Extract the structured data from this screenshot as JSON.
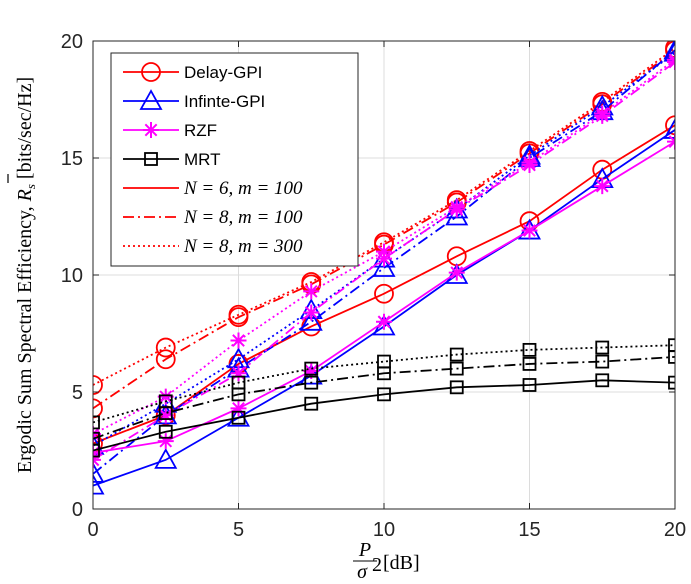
{
  "chart_data": {
    "type": "line",
    "title": "",
    "xlabel": "P/σ² [dB]",
    "xlabel_parts": {
      "num": "P",
      "den": "σ",
      "exp": "2",
      "unit": "[dB]"
    },
    "ylabel": "Ergodic Sum Spectral Efficiency, R̄s [bits/sec/Hz]",
    "ylabel_parts": {
      "prefix": "Ergodic Sum Spectral Efficiency,",
      "sym": "R",
      "sub": "s",
      "unit": "[bits/sec/Hz]"
    },
    "xlim": [
      0,
      20
    ],
    "ylim": [
      0,
      20
    ],
    "xticks": [
      "0",
      "5",
      "10",
      "15",
      "20"
    ],
    "yticks": [
      "0",
      "5",
      "10",
      "15",
      "20"
    ],
    "grid": true,
    "legend_position": "top-left",
    "legend": [
      {
        "label": "Delay-GPI",
        "kind": "marker",
        "marker": "circle",
        "color": "#ff0000"
      },
      {
        "label": "Infinte-GPI",
        "kind": "marker",
        "marker": "triangle",
        "color": "#0000ff"
      },
      {
        "label": "RZF",
        "kind": "marker",
        "marker": "star",
        "color": "#ff00ff"
      },
      {
        "label": "MRT",
        "kind": "marker",
        "marker": "square",
        "color": "#000000"
      },
      {
        "label": "N = 6, m = 100",
        "kind": "line",
        "dash": "solid",
        "color": "#ff0000"
      },
      {
        "label": "N = 8, m = 100",
        "kind": "line",
        "dash": "dashdot",
        "color": "#ff0000"
      },
      {
        "label": "N = 8, m = 300",
        "kind": "line",
        "dash": "dotted",
        "color": "#ff0000"
      }
    ],
    "x": [
      0,
      2.5,
      5,
      7.5,
      10,
      12.5,
      15,
      17.5,
      20
    ],
    "series": [
      {
        "method": "Delay-GPI",
        "config": "N=6, m=100",
        "color": "#ff0000",
        "marker": "circle",
        "dash": "solid",
        "values": [
          2.8,
          4.0,
          6.2,
          7.8,
          9.2,
          10.8,
          12.3,
          14.5,
          16.4
        ]
      },
      {
        "method": "Delay-GPI",
        "config": "N=8, m=100",
        "color": "#ff0000",
        "marker": "circle",
        "dash": "dashdot",
        "values": [
          4.3,
          6.4,
          8.2,
          9.6,
          11.3,
          13.1,
          15.2,
          17.3,
          19.6
        ]
      },
      {
        "method": "Delay-GPI",
        "config": "N=8, m=300",
        "color": "#ff0000",
        "marker": "circle",
        "dash": "dotted",
        "values": [
          5.3,
          6.9,
          8.3,
          9.7,
          11.4,
          13.2,
          15.3,
          17.4,
          19.7
        ]
      },
      {
        "method": "Infinte-GPI",
        "config": "N=6, m=100",
        "color": "#0000ff",
        "marker": "triangle",
        "dash": "solid",
        "values": [
          1.0,
          2.1,
          3.9,
          5.7,
          7.8,
          10.0,
          11.9,
          14.1,
          16.2
        ]
      },
      {
        "method": "Infinte-GPI",
        "config": "N=8, m=100",
        "color": "#0000ff",
        "marker": "triangle",
        "dash": "dashdot",
        "values": [
          1.5,
          4.0,
          6.0,
          8.0,
          10.3,
          12.5,
          15.0,
          17.0,
          19.6
        ]
      },
      {
        "method": "Infinte-GPI",
        "config": "N=8, m=300",
        "color": "#0000ff",
        "marker": "triangle",
        "dash": "dotted",
        "values": [
          2.7,
          4.5,
          6.4,
          8.5,
          10.7,
          12.8,
          15.1,
          17.2,
          19.5
        ]
      },
      {
        "method": "RZF",
        "config": "N=6, m=100",
        "color": "#ff00ff",
        "marker": "star",
        "dash": "solid",
        "values": [
          2.4,
          2.9,
          4.3,
          5.9,
          8.0,
          10.1,
          11.9,
          13.8,
          15.7
        ]
      },
      {
        "method": "RZF",
        "config": "N=8, m=100",
        "color": "#ff00ff",
        "marker": "star",
        "dash": "dashdot",
        "values": [
          2.1,
          4.0,
          5.8,
          8.4,
          10.7,
          12.8,
          14.7,
          16.8,
          19.1
        ]
      },
      {
        "method": "RZF",
        "config": "N=8, m=300",
        "color": "#ff00ff",
        "marker": "star",
        "dash": "dotted",
        "values": [
          3.2,
          4.8,
          7.2,
          9.3,
          11.0,
          12.9,
          14.8,
          16.9,
          19.2
        ]
      },
      {
        "method": "MRT",
        "config": "N=6, m=100",
        "color": "#000000",
        "marker": "square",
        "dash": "solid",
        "values": [
          2.5,
          3.3,
          3.9,
          4.5,
          4.9,
          5.2,
          5.3,
          5.5,
          5.4
        ]
      },
      {
        "method": "MRT",
        "config": "N=8, m=100",
        "color": "#000000",
        "marker": "square",
        "dash": "dashdot",
        "values": [
          3.0,
          4.1,
          4.9,
          5.4,
          5.8,
          6.0,
          6.2,
          6.3,
          6.5
        ]
      },
      {
        "method": "MRT",
        "config": "N=8, m=300",
        "color": "#000000",
        "marker": "square",
        "dash": "dotted",
        "values": [
          3.7,
          4.6,
          5.4,
          6.0,
          6.3,
          6.6,
          6.8,
          6.9,
          7.0
        ]
      }
    ]
  }
}
